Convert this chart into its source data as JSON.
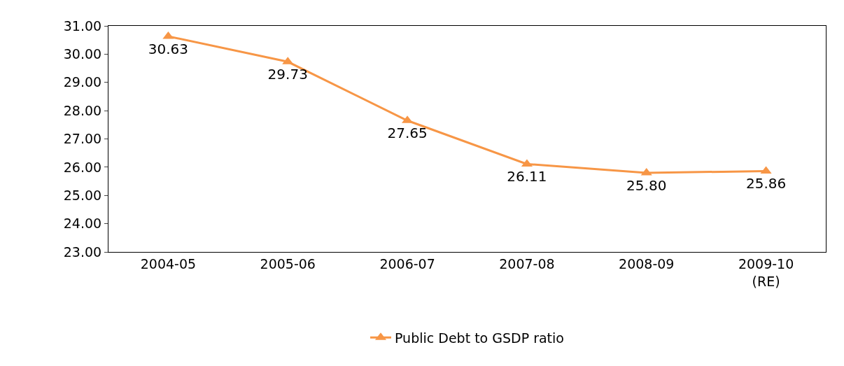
{
  "chart_data": {
    "type": "line",
    "categories": [
      "2004-05",
      "2005-06",
      "2006-07",
      "2007-08",
      "2008-09",
      "2009-10\n(RE)"
    ],
    "series": [
      {
        "name": "Public Debt to GSDP ratio",
        "color": "#f79646",
        "values": [
          30.63,
          29.73,
          27.65,
          26.11,
          25.8,
          25.86
        ],
        "value_labels": [
          "30.63",
          "29.73",
          "27.65",
          "26.11",
          "25.80",
          "25.86"
        ]
      }
    ],
    "ylim": [
      23,
      31
    ],
    "yticks": [
      {
        "value": 23,
        "label": "23.00"
      },
      {
        "value": 24,
        "label": "24.00"
      },
      {
        "value": 25,
        "label": "25.00"
      },
      {
        "value": 26,
        "label": "26.00"
      },
      {
        "value": 27,
        "label": "27.00"
      },
      {
        "value": 28,
        "label": "28.00"
      },
      {
        "value": 29,
        "label": "29.00"
      },
      {
        "value": 30,
        "label": "30.00"
      },
      {
        "value": 31,
        "label": "31.00"
      }
    ],
    "marker": "triangle",
    "line_style": "solid",
    "grid": false,
    "legend": "bottom"
  }
}
